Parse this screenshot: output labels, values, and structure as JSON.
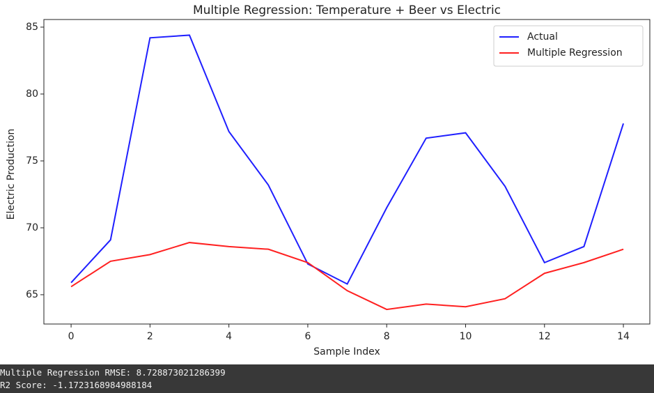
{
  "chart_data": {
    "type": "line",
    "title": "Multiple Regression: Temperature + Beer vs Electric",
    "x_label": "Sample Index",
    "y_label": "Electric Production",
    "x": [
      0,
      1,
      2,
      3,
      4,
      5,
      6,
      7,
      8,
      9,
      10,
      11,
      12,
      13,
      14
    ],
    "series": [
      {
        "name": "Actual",
        "color": "#1f1fff",
        "values": [
          65.9,
          69.1,
          84.2,
          84.4,
          77.2,
          73.2,
          67.3,
          65.8,
          71.5,
          76.7,
          77.1,
          73.1,
          67.4,
          68.6,
          77.8
        ]
      },
      {
        "name": "Multiple Regression",
        "color": "#ff2020",
        "values": [
          65.6,
          67.5,
          68.0,
          68.9,
          68.6,
          68.4,
          67.4,
          65.3,
          63.9,
          64.3,
          64.1,
          64.7,
          66.6,
          67.4,
          68.4
        ]
      }
    ],
    "xlim": [
      -0.69,
      14.67
    ],
    "xticks": [
      0,
      2,
      4,
      6,
      8,
      10,
      12,
      14
    ],
    "ylim": [
      62.81,
      85.57
    ],
    "yticks": [
      65,
      70,
      75,
      80,
      85
    ],
    "legend": "upper right"
  },
  "output_lines": [
    "Multiple Regression RMSE: 8.728873021286399",
    "R2 Score: -1.1723168984988184"
  ]
}
